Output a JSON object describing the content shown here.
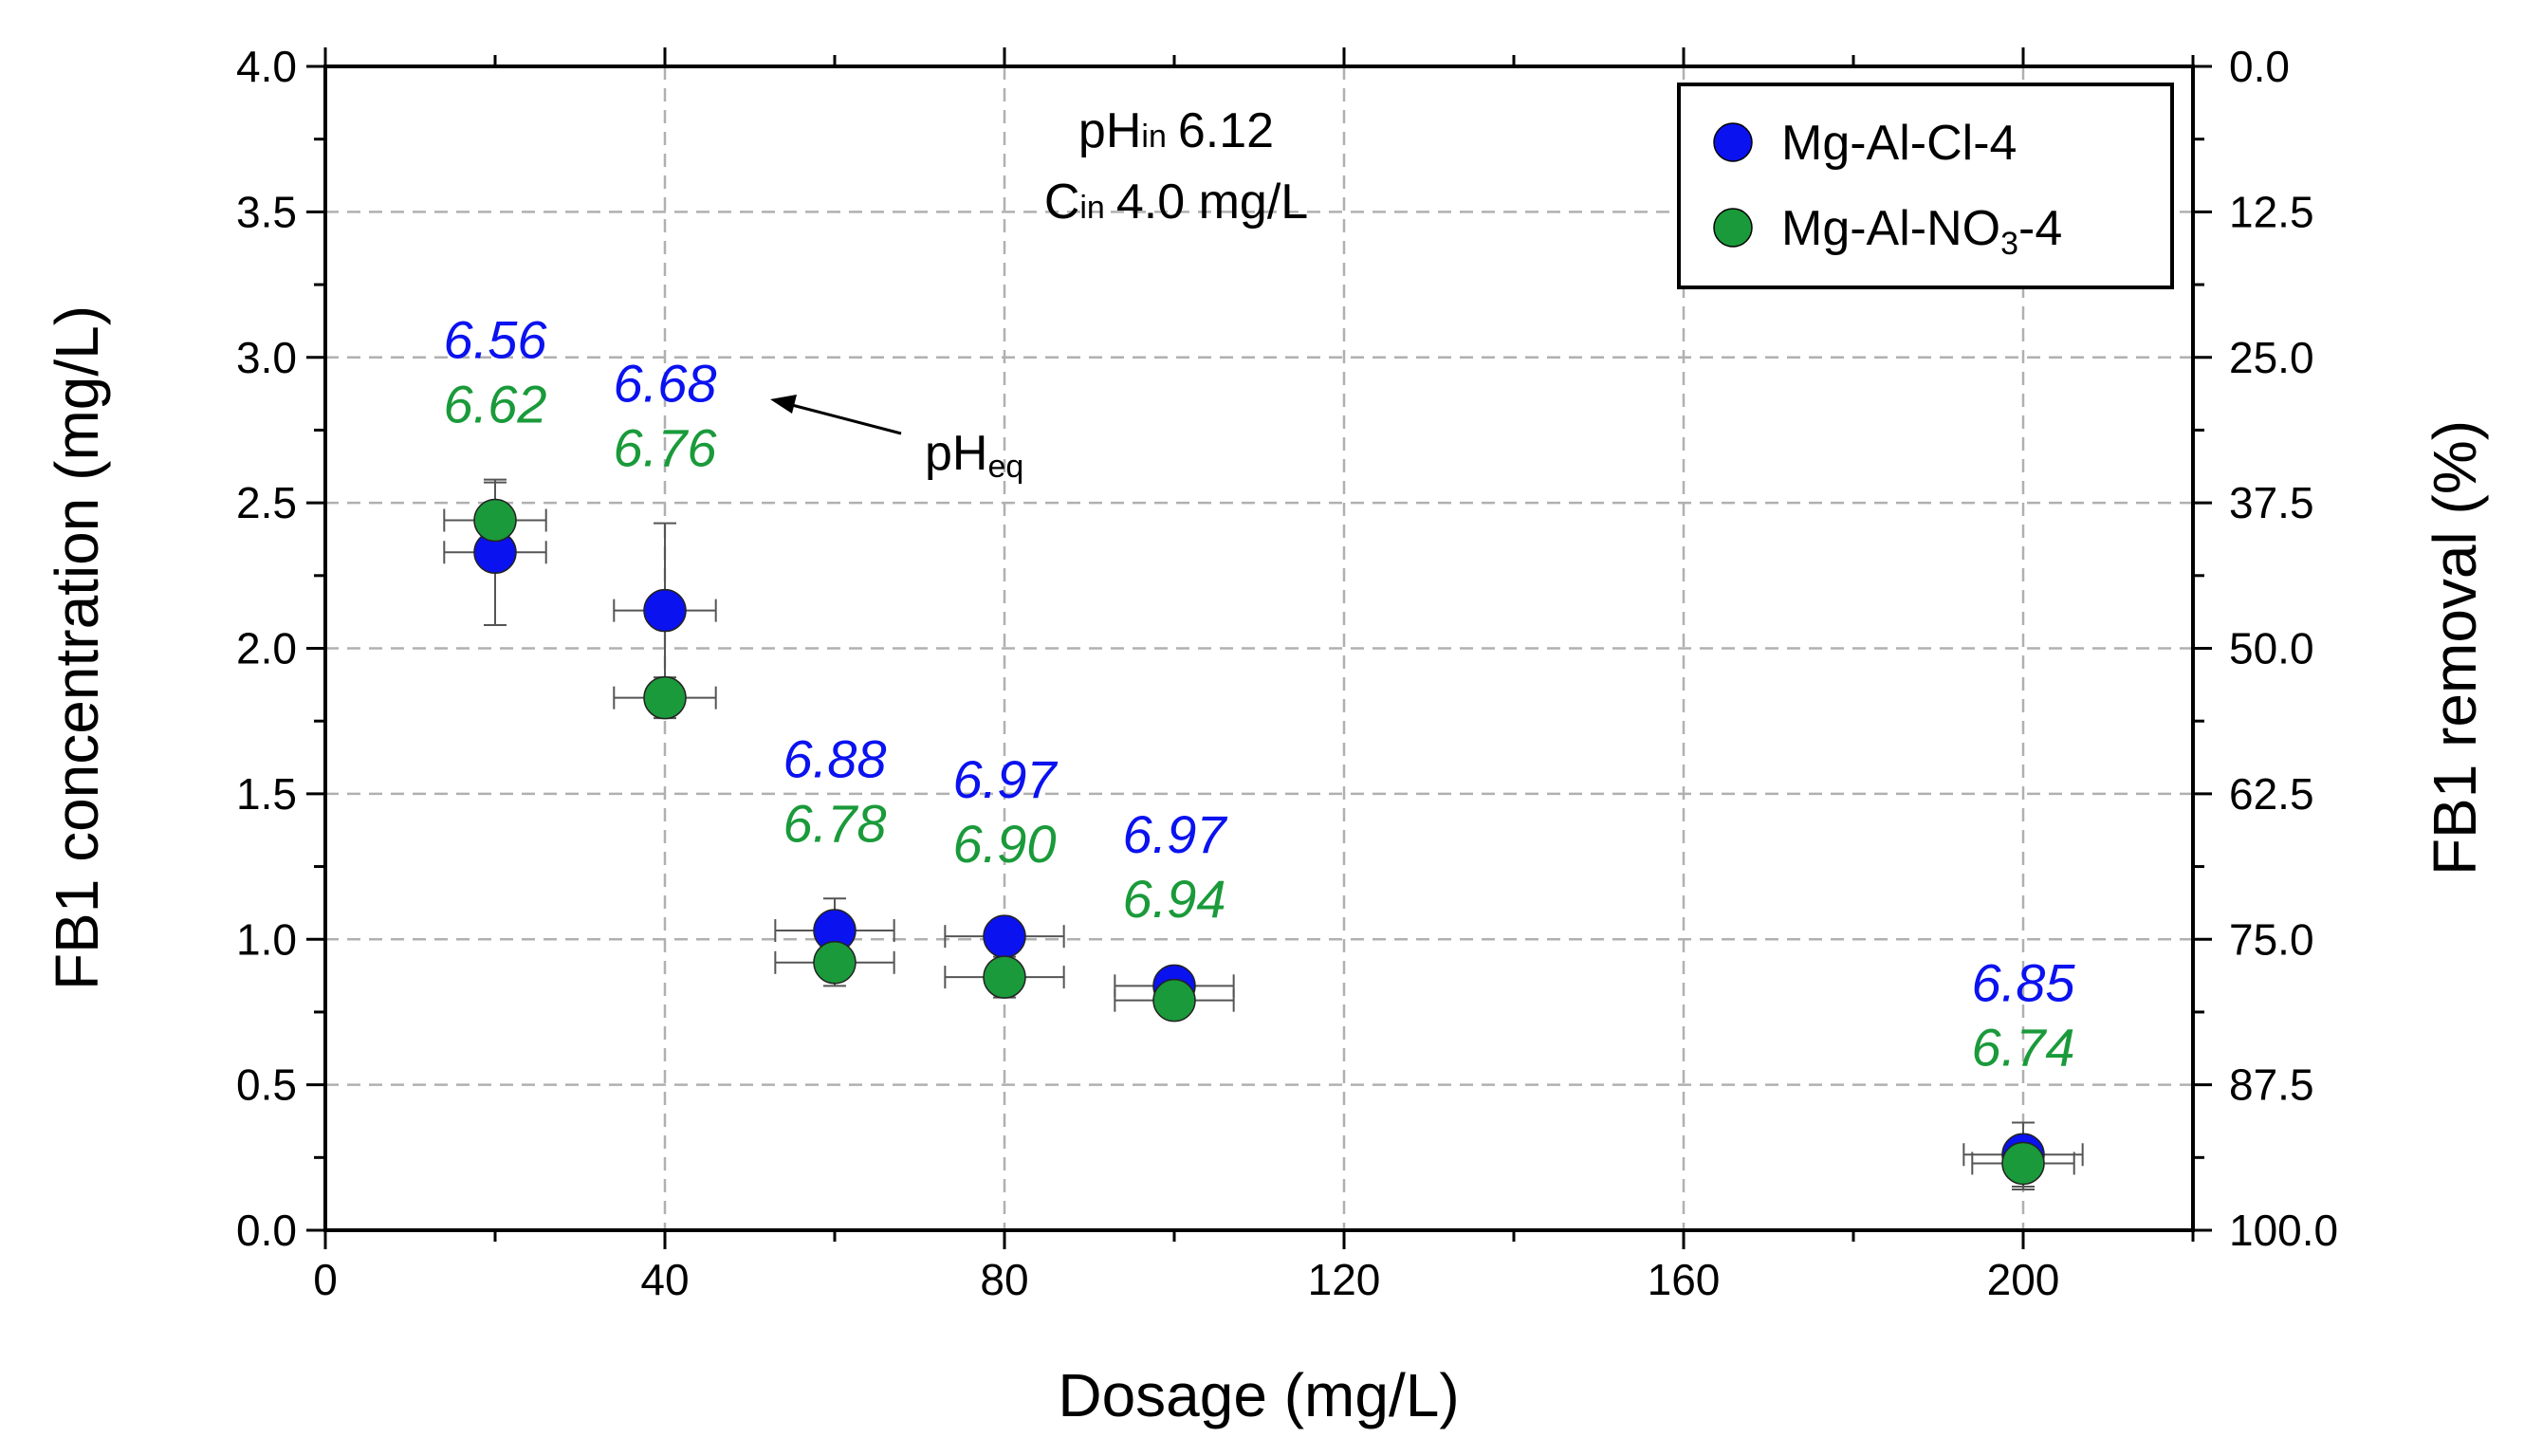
{
  "chart_data": {
    "type": "scatter",
    "xlabel": "Dosage (mg/L)",
    "ylabel": "FB1 concentration (mg/L)",
    "y2label": "FB1 removal (%)",
    "xlim": [
      0,
      220
    ],
    "ylim": [
      0,
      4.0
    ],
    "x_ticks": [
      0,
      40,
      80,
      120,
      160,
      200
    ],
    "y_ticks": [
      0.0,
      0.5,
      1.0,
      1.5,
      2.0,
      2.5,
      3.0,
      3.5,
      4.0
    ],
    "y2_ticks": [
      0.0,
      12.5,
      25.0,
      37.5,
      50.0,
      62.5,
      75.0,
      87.5,
      100.0
    ],
    "grid": "dashed",
    "legend_position": "top-right",
    "series": [
      {
        "name": "Mg-Al-Cl-4",
        "name_main": "Mg-Al-Cl-4",
        "name_sub": "",
        "name_tail": "",
        "color": "#0a12f0",
        "x": [
          20,
          40,
          60,
          80,
          100,
          200
        ],
        "y": [
          2.33,
          2.13,
          1.03,
          1.01,
          0.84,
          0.26
        ],
        "xerr": [
          6,
          6,
          7,
          7,
          7,
          7
        ],
        "yerr": [
          0.25,
          0.3,
          0.11,
          0.06,
          0.04,
          0.11
        ],
        "ph_eq": [
          "6.56",
          "6.68",
          "6.88",
          "6.97",
          "6.97",
          "6.85"
        ]
      },
      {
        "name": "Mg-Al-NO3-4",
        "name_main": "Mg-Al-NO",
        "name_sub": "3",
        "name_tail": "-4",
        "color": "#1a9a3a",
        "x": [
          20,
          40,
          60,
          80,
          100,
          200
        ],
        "y": [
          2.44,
          1.83,
          0.92,
          0.87,
          0.79,
          0.23
        ],
        "xerr": [
          6,
          6,
          7,
          7,
          7,
          6
        ],
        "yerr": [
          0.13,
          0.07,
          0.08,
          0.07,
          0.05,
          0.09
        ],
        "ph_eq": [
          "6.62",
          "6.76",
          "6.78",
          "6.90",
          "6.94",
          "6.74"
        ]
      }
    ],
    "annotations": {
      "ph_in_main": "pH",
      "ph_in_sub": "in",
      "ph_in_value": "6.12",
      "c_in_main": "C",
      "c_in_sub": "in",
      "c_in_value": "4.0 mg/L",
      "ph_eq_main": "pH",
      "ph_eq_sub": "eq"
    }
  }
}
